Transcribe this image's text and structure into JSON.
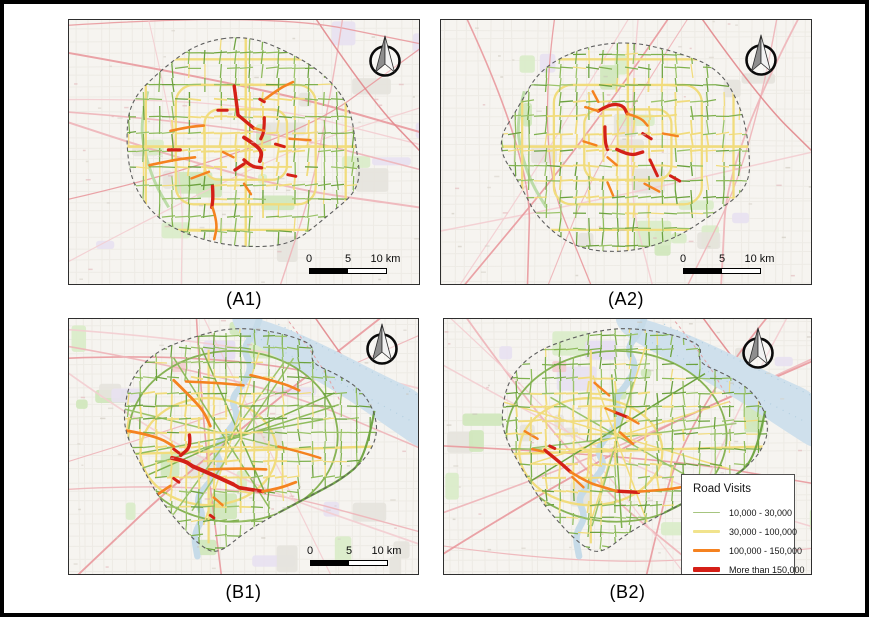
{
  "figure": {
    "panel_labels": {
      "a1": "(A1)",
      "a2": "(A2)",
      "b1": "(B1)",
      "b2": "(B2)"
    },
    "scalebar": {
      "start": "0",
      "middle": "5",
      "end": "10 km"
    },
    "legend": {
      "title": "Road Visits",
      "items": [
        {
          "label": "10,000 - 30,000",
          "color": "#a6c57f",
          "thickness": 1.5
        },
        {
          "label": "30,000 - 100,000",
          "color": "#f1e38d",
          "thickness": 2.5
        },
        {
          "label": "100,000 - 150,000",
          "color": "#f58220",
          "thickness": 3.5
        },
        {
          "label": "More than 150,000",
          "color": "#d51f17",
          "thickness": 5
        }
      ]
    },
    "map_colors": {
      "background": "#f6f4f0",
      "road_level1": "#85b252",
      "road_level2": "#f1dc7d",
      "road_level3": "#f58220",
      "road_level4": "#d42017",
      "water": "#cfe0ec",
      "boundary_dash": "#5f5f5f",
      "minor_road": "#ebe8e2",
      "highway_pink": "#eeb4b8"
    },
    "icons": {
      "north_arrow": "north-arrow"
    }
  }
}
